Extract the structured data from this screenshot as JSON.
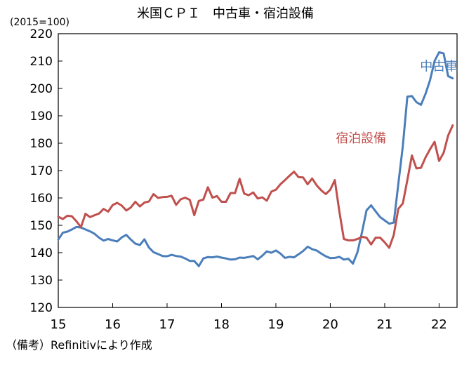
{
  "chart_data": {
    "type": "line",
    "title": "米国ＣＰＩ　中古車・宿泊設備",
    "unit_label": "(2015=100)",
    "ylim": [
      120,
      220
    ],
    "yticks": [
      120,
      130,
      140,
      150,
      160,
      170,
      180,
      190,
      200,
      210,
      220
    ],
    "xlim": [
      2015,
      2022.33
    ],
    "xtick_labels": [
      "15",
      "16",
      "17",
      "18",
      "19",
      "20",
      "21",
      "22"
    ],
    "xtick_years": [
      2015,
      2016,
      2017,
      2018,
      2019,
      2020,
      2021,
      2022
    ],
    "grid": false,
    "series": [
      {
        "name": "中古車",
        "color": "#4a7ebb",
        "x_start": 2015,
        "step_months": 1,
        "values": [
          144.8,
          147.3,
          147.7,
          148.5,
          149.4,
          149.2,
          148.5,
          147.8,
          146.9,
          145.5,
          144.4,
          145.0,
          144.5,
          144.1,
          145.6,
          146.5,
          144.8,
          143.3,
          142.8,
          144.9,
          141.9,
          140.2,
          139.5,
          138.8,
          138.7,
          139.2,
          138.8,
          138.6,
          137.9,
          137.0,
          137.0,
          135.1,
          137.9,
          138.4,
          138.3,
          138.6,
          138.2,
          137.9,
          137.5,
          137.6,
          138.2,
          138.1,
          138.4,
          138.8,
          137.6,
          138.9,
          140.5,
          140.0,
          140.8,
          139.7,
          138.1,
          138.5,
          138.3,
          139.4,
          140.6,
          142.2,
          141.3,
          140.8,
          139.7,
          138.7,
          138.0,
          138.1,
          138.5,
          137.5,
          137.8,
          136.0,
          140.2,
          147.6,
          155.5,
          157.3,
          155.1,
          153.0,
          151.8,
          150.6,
          151.0,
          165.0,
          179.0,
          197.0,
          197.2,
          195.0,
          194.0,
          198.0,
          203.0,
          210.0,
          213.2,
          212.8,
          204.5,
          203.7
        ]
      },
      {
        "name": "宿泊設備",
        "color": "#c0504d",
        "x_start": 2015,
        "step_months": 1,
        "values": [
          153.1,
          152.3,
          153.5,
          153.3,
          151.5,
          149.3,
          154.2,
          153.0,
          153.7,
          154.3,
          156.0,
          155.0,
          157.4,
          158.2,
          157.2,
          155.4,
          156.5,
          158.6,
          156.9,
          158.3,
          158.7,
          161.4,
          160.0,
          160.3,
          160.4,
          160.8,
          157.5,
          159.5,
          160.1,
          159.3,
          153.7,
          158.9,
          159.4,
          163.9,
          160.1,
          160.7,
          158.6,
          158.6,
          161.8,
          161.8,
          167.0,
          161.6,
          161.0,
          162.0,
          159.8,
          160.2,
          159.0,
          162.3,
          163.0,
          165.0,
          166.5,
          168.1,
          169.6,
          167.6,
          167.5,
          165.0,
          167.1,
          164.6,
          162.8,
          161.4,
          163.0,
          166.5,
          155.0,
          145.0,
          144.5,
          144.5,
          145.0,
          145.8,
          145.5,
          143.0,
          145.5,
          145.5,
          143.8,
          141.8,
          146.5,
          156.0,
          158.0,
          166.5,
          175.5,
          170.8,
          171.0,
          174.8,
          177.8,
          180.5,
          173.5,
          176.5,
          182.8,
          186.5
        ]
      }
    ],
    "annotations": [
      {
        "text": "中古車",
        "series": "中古車",
        "at_year": 2021.65,
        "at_value": 206.5
      },
      {
        "text": "宿泊設備",
        "series": "宿泊設備",
        "at_year": 2020.1,
        "at_value": 180.2
      }
    ]
  },
  "footnote": "（備考）Refinitivにより作成"
}
